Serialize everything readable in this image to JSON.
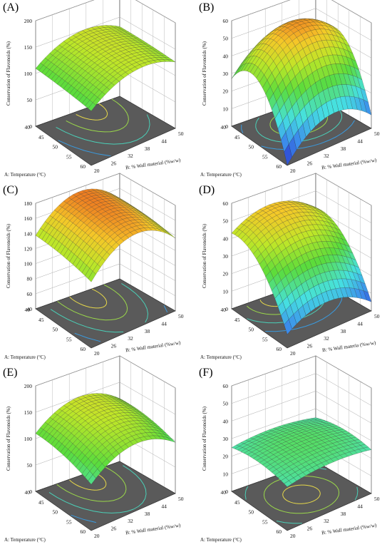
{
  "figure": {
    "panels": [
      {
        "label": "(A)",
        "zlabel": "Conservation of Flavonoids (%)",
        "xlabel": "A: Temperature (°C)",
        "ylabel": "B: % Wall material (%w/w)",
        "z_ticks": [
          "0",
          "50",
          "100",
          "150",
          "200"
        ],
        "x_ticks": [
          "40",
          "45",
          "50",
          "55",
          "60"
        ],
        "y_ticks": [
          "20",
          "26",
          "32",
          "38",
          "44",
          "50"
        ]
      },
      {
        "label": "(B)",
        "zlabel": "Conservation of Flavonoids (%)",
        "xlabel": "A: Temperature (°C)",
        "ylabel": "B: % Wall material (%w/w)",
        "z_ticks": [
          "0",
          "10",
          "20",
          "30",
          "40",
          "50",
          "60"
        ],
        "x_ticks": [
          "40",
          "45",
          "50",
          "55",
          "60"
        ],
        "y_ticks": [
          "20",
          "26",
          "32",
          "38",
          "44",
          "50"
        ]
      },
      {
        "label": "(C)",
        "zlabel": "Conservation of Flavonoids (%)",
        "xlabel": "A: Temperature (°C)",
        "ylabel": "B: % Wall material (%w/w)",
        "z_ticks": [
          "40",
          "60",
          "80",
          "100",
          "120",
          "140",
          "160",
          "180"
        ],
        "x_ticks": [
          "40",
          "45",
          "50",
          "55",
          "60"
        ],
        "y_ticks": [
          "20",
          "26",
          "32",
          "38",
          "44",
          "50"
        ]
      },
      {
        "label": "(D)",
        "zlabel": "Conservation of Flavonoids (%)",
        "xlabel": "A: Temperature (°C)",
        "ylabel": "B: % Wall materia (%w/w)",
        "z_ticks": [
          "0",
          "10",
          "20",
          "30",
          "40",
          "50",
          "60"
        ],
        "x_ticks": [
          "40",
          "45",
          "50",
          "55",
          "60"
        ],
        "y_ticks": [
          "20",
          "26",
          "32",
          "38",
          "44",
          "50"
        ]
      },
      {
        "label": "(E)",
        "zlabel": "Conservation of Flavonoids (%)",
        "xlabel": "A: Temperature (°C)",
        "ylabel": "B: % Wall material (%w/w)",
        "z_ticks": [
          "0",
          "50",
          "100",
          "150",
          "200"
        ],
        "x_ticks": [
          "40",
          "45",
          "50",
          "55",
          "60"
        ],
        "y_ticks": [
          "20",
          "26",
          "32",
          "38",
          "44",
          "50"
        ]
      },
      {
        "label": "(F)",
        "zlabel": "Conservation of Flavonoids (%)",
        "xlabel": "A: Temperature (°C)",
        "ylabel": "B: % Wall material (%w/w)",
        "z_ticks": [
          "0",
          "10",
          "20",
          "30",
          "40",
          "50",
          "60"
        ],
        "x_ticks": [
          "40",
          "45",
          "50",
          "55",
          "60"
        ],
        "y_ticks": [
          "20",
          "26",
          "32",
          "38",
          "44",
          "50"
        ]
      }
    ]
  },
  "chart_data": [
    {
      "type": "surface",
      "panel": "(A)",
      "zlim": [
        0,
        200
      ],
      "xlim": [
        40,
        60
      ],
      "ylim": [
        20,
        50
      ],
      "model": {
        "peak_x": 40,
        "peak_y": 38,
        "z_max": 150,
        "ax": 0.05,
        "ay": 0.9,
        "z_min": 25
      }
    },
    {
      "type": "surface",
      "panel": "(B)",
      "zlim": [
        0,
        60
      ],
      "xlim": [
        40,
        60
      ],
      "ylim": [
        20,
        50
      ],
      "model": {
        "peak_x": 47,
        "peak_y": 37,
        "z_max": 56,
        "ax": 1.6,
        "ay": 1.0,
        "z_min": 0
      }
    },
    {
      "type": "surface",
      "panel": "(C)",
      "zlim": [
        40,
        180
      ],
      "xlim": [
        40,
        60
      ],
      "ylim": [
        20,
        50
      ],
      "model": {
        "peak_x": 42,
        "peak_y": 36,
        "z_max": 175,
        "ax": 0.1,
        "ay": 1.1,
        "z_min": 55
      }
    },
    {
      "type": "surface",
      "panel": "(D)",
      "zlim": [
        0,
        60
      ],
      "xlim": [
        40,
        60
      ],
      "ylim": [
        20,
        50
      ],
      "model": {
        "peak_x": 42,
        "peak_y": 34,
        "z_max": 52,
        "ax": 0.9,
        "ay": 0.8,
        "z_min": 3
      }
    },
    {
      "type": "surface",
      "panel": "(E)",
      "zlim": [
        0,
        200
      ],
      "xlim": [
        40,
        60
      ],
      "ylim": [
        20,
        50
      ],
      "model": {
        "peak_x": 42,
        "peak_y": 36,
        "z_max": 150,
        "ax": 0.2,
        "ay": 1.0,
        "z_min": 10
      }
    },
    {
      "type": "surface",
      "panel": "(F)",
      "zlim": [
        0,
        60
      ],
      "xlim": [
        40,
        60
      ],
      "ylim": [
        20,
        50
      ],
      "model": {
        "peak_x": 50,
        "peak_y": 35,
        "z_max": 30,
        "ax": 0.6,
        "ay": 0.6,
        "z_min": 13
      }
    }
  ]
}
